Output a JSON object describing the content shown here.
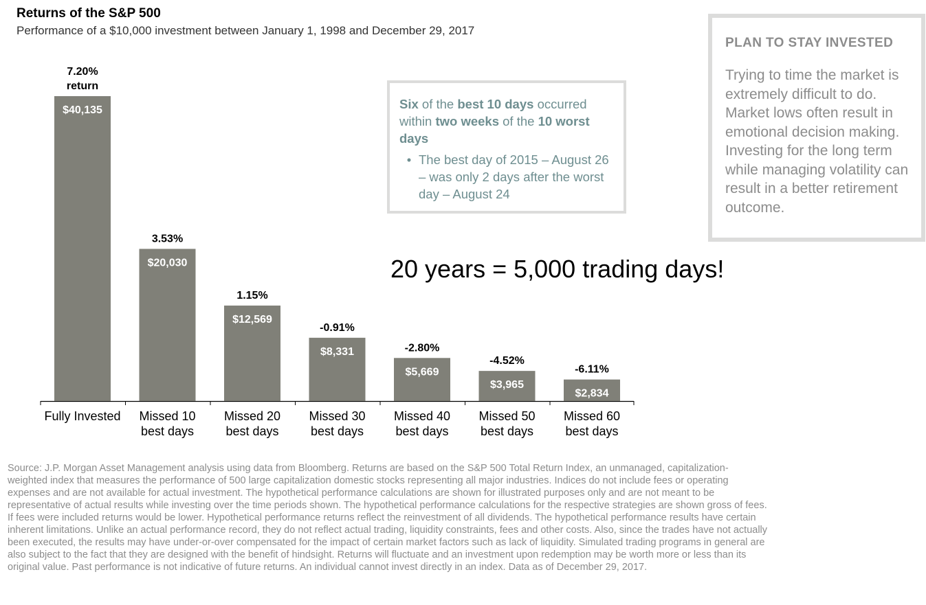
{
  "header": {
    "title": "Returns of the S&P 500",
    "subtitle": "Performance of a $10,000 investment between January 1, 1998 and December 29, 2017"
  },
  "chart_data": {
    "type": "bar",
    "categories": [
      [
        "Fully Invested"
      ],
      [
        "Missed 10",
        "best days"
      ],
      [
        "Missed 20",
        "best days"
      ],
      [
        "Missed 30",
        "best days"
      ],
      [
        "Missed 40",
        "best days"
      ],
      [
        "Missed 50",
        "best days"
      ],
      [
        "Missed 60",
        "best days"
      ]
    ],
    "values": [
      40135,
      20030,
      12569,
      8331,
      5669,
      3965,
      2834
    ],
    "value_labels": [
      "$40,135",
      "$20,030",
      "$12,569",
      "$8,331",
      "$5,669",
      "$3,965",
      "$2,834"
    ],
    "return_labels": [
      [
        "7.20%",
        "return"
      ],
      [
        "3.53%"
      ],
      [
        "1.15%"
      ],
      [
        "-0.91%"
      ],
      [
        "-2.80%"
      ],
      [
        "-4.52%"
      ],
      [
        "-6.11%"
      ]
    ],
    "ylim": [
      0,
      40135
    ],
    "grid": false,
    "bar_color": "#808078"
  },
  "callout": {
    "head_parts": [
      "Six",
      " of the ",
      "best 10 days",
      " occurred within ",
      "two weeks",
      " of the ",
      "10 worst days"
    ],
    "bullet": "•",
    "bullet_text": "The best day of 2015 – August 26 – was only 2 days after the worst day – August 24"
  },
  "big_text": "20 years = 5,000 trading days!",
  "sidebar": {
    "title": "PLAN TO STAY INVESTED",
    "body": "Trying to time the market is extremely difficult to do. Market lows often result in emotional decision making. Investing for the long term while managing volatility can result in a better retirement outcome."
  },
  "source": "Source: J.P. Morgan Asset Management analysis using data from Bloomberg. Returns are based on the S&P 500 Total Return Index, an unmanaged, capitalization-weighted index that measures the performance of 500 large capitalization domestic stocks representing all major industries. Indices do not include fees or operating expenses and are not available for actual investment. The hypothetical performance calculations are shown for illustrated purposes only and are not meant to be representative of actual results while investing over the time periods shown. The hypothetical performance calculations for the respective strategies are shown gross of fees. If fees were included returns would be lower. Hypothetical performance returns reflect the reinvestment of all dividends. The hypothetical performance results have certain inherent limitations. Unlike an actual performance record, they do not reflect actual trading, liquidity constraints, fees and other costs. Also, since the trades have not actually been executed, the results may have under-or-over compensated for the impact of certain market factors such as lack of liquidity. Simulated trading programs in general are also subject to the fact that they are designed with the benefit of hindsight. Returns will fluctuate and an investment upon redemption may be worth more or less than its original value. Past performance is not indicative of future returns. An individual cannot invest directly in an index. Data as of December 29, 2017."
}
